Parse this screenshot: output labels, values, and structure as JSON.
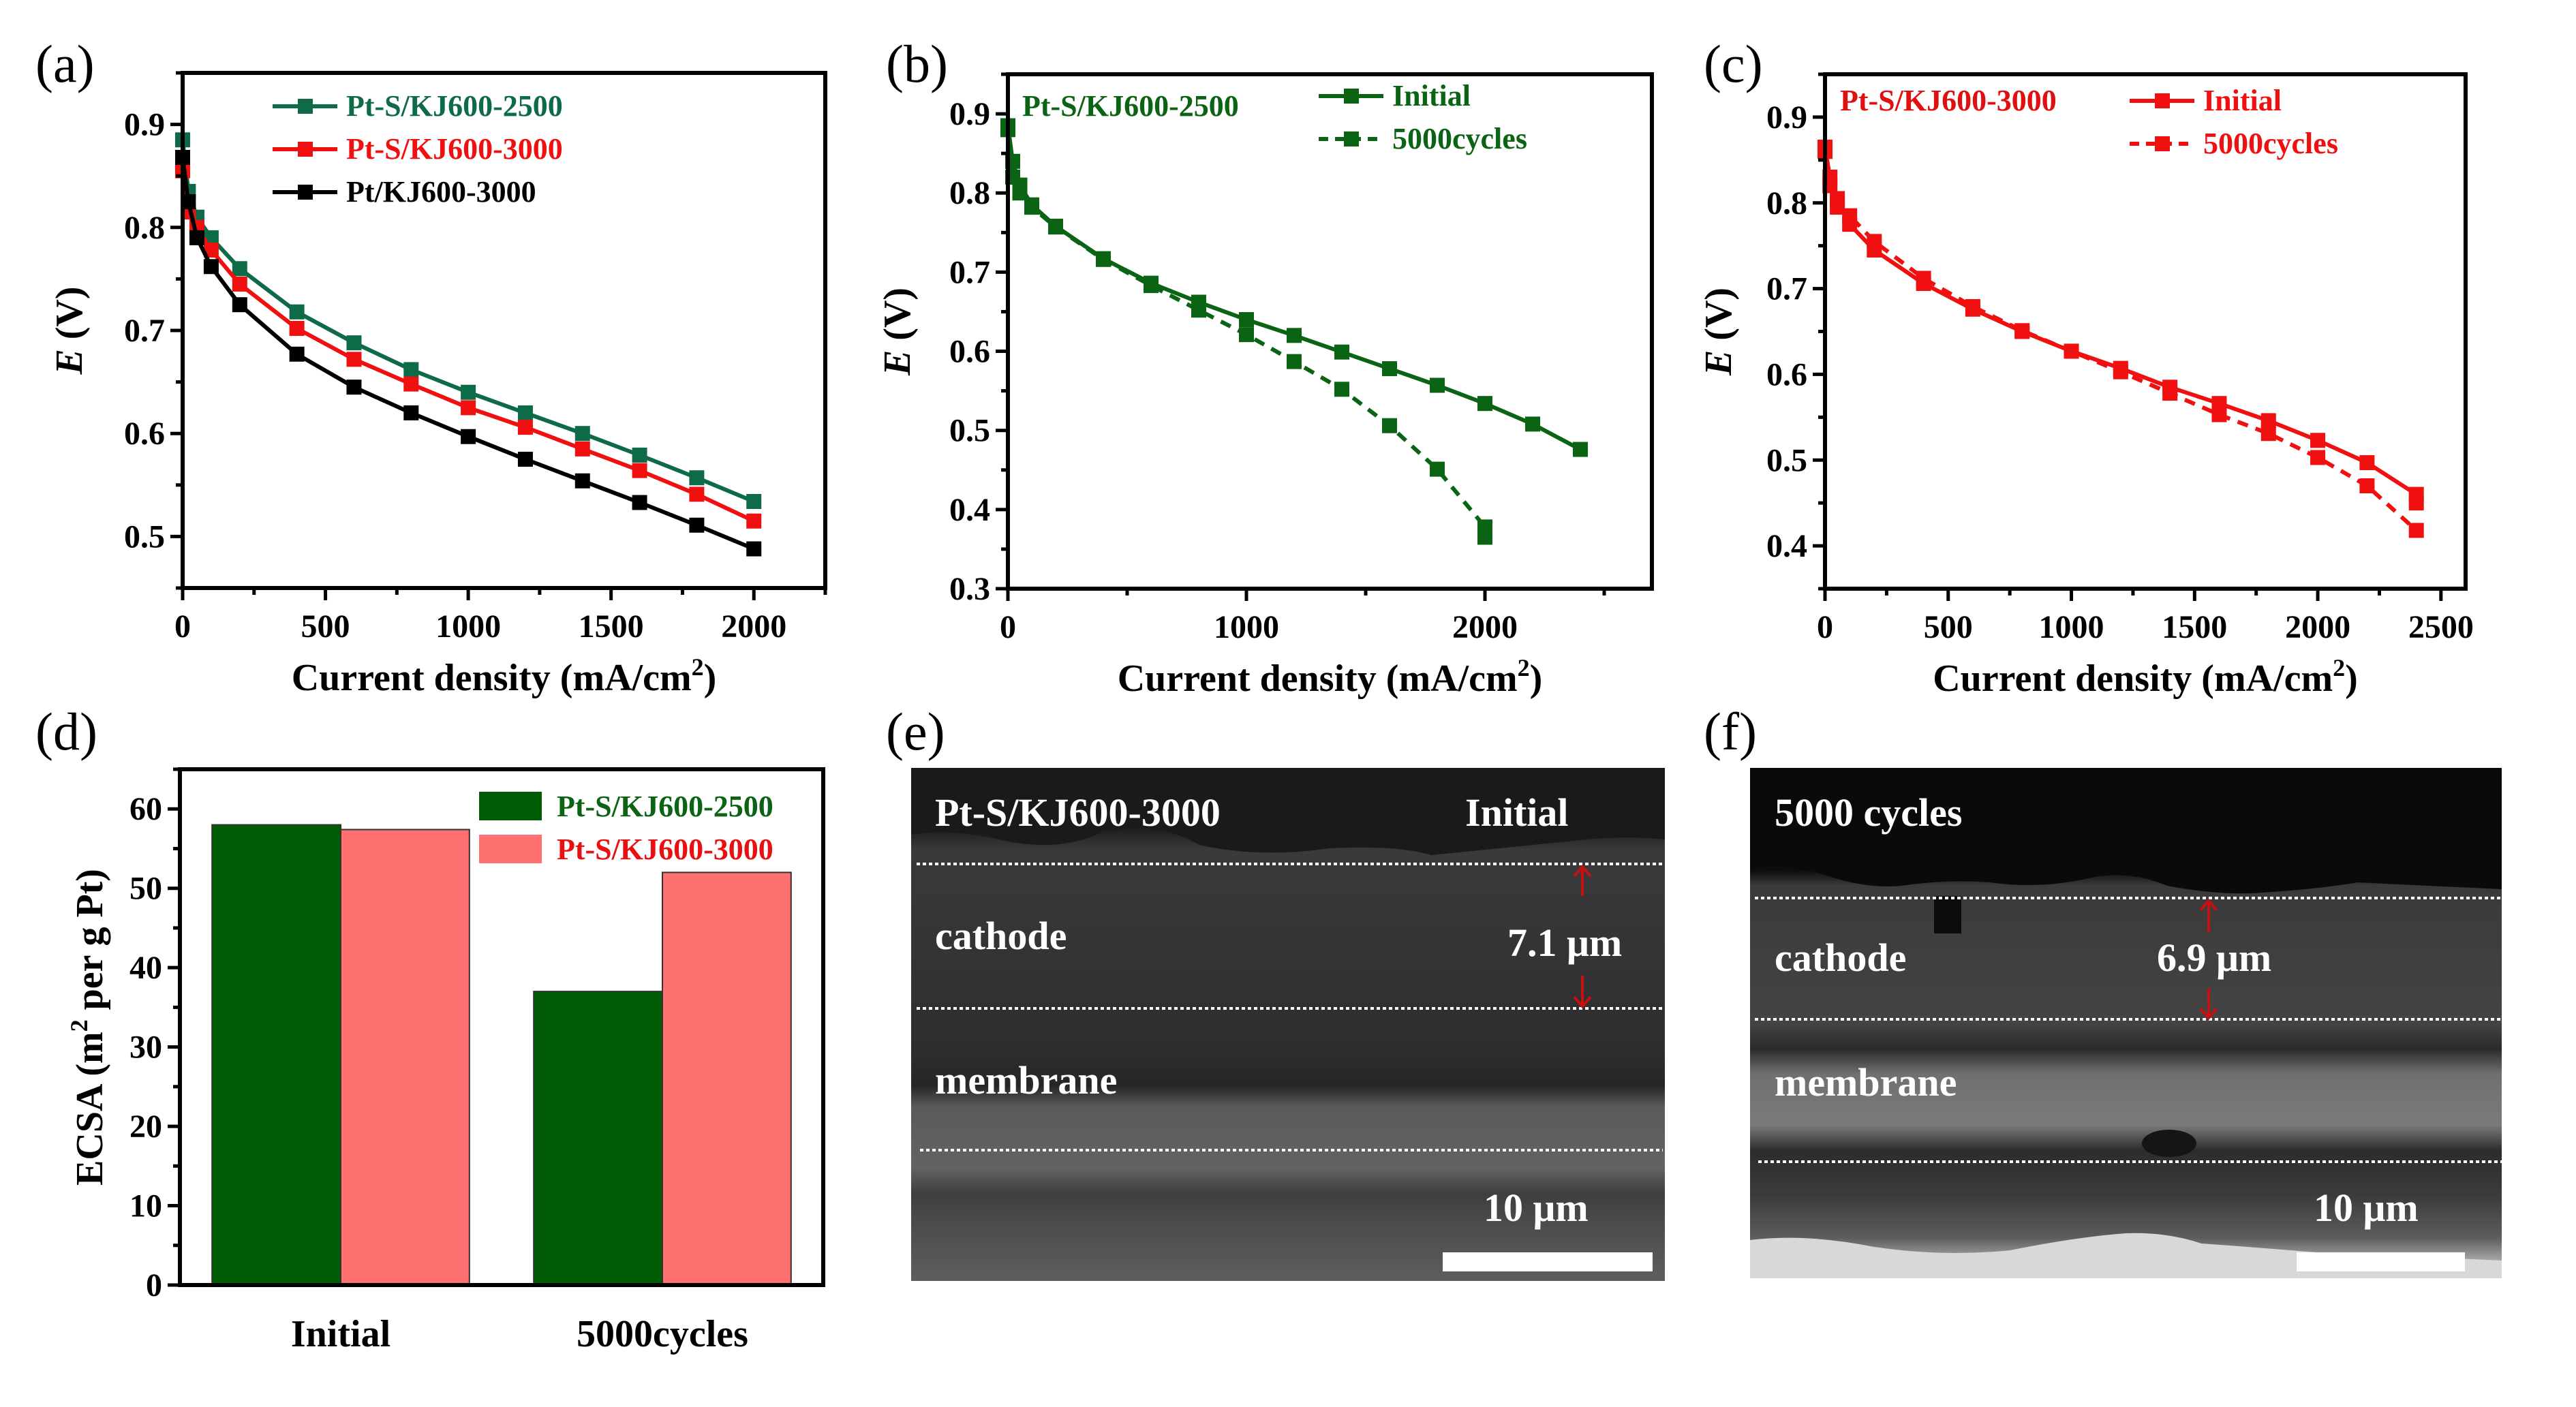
{
  "panel_labels": [
    "(a)",
    "(b)",
    "(c)",
    "(d)",
    "(e)",
    "(f)"
  ],
  "colors": {
    "teal_green": "#0E6B47",
    "dark_green": "#0A6414",
    "red": "#F01010",
    "black": "#000000",
    "bar_green": "#005C05",
    "bar_pink": "#FF7070"
  },
  "chart_data": [
    {
      "id": "a",
      "type": "line",
      "title": "",
      "xlabel": "Current density (mA/cm",
      "xlabel_sup": "2",
      "xlabel_end": ")",
      "ylabel_italic": "E",
      "ylabel_rest": " (V)",
      "xlim": [
        0,
        2250
      ],
      "ylim": [
        0.45,
        0.95
      ],
      "xticks": [
        0,
        500,
        1000,
        1500,
        2000
      ],
      "xtick_labels": [
        "0",
        "500",
        "1000",
        "1500",
        "2000"
      ],
      "yticks": [
        0.5,
        0.6,
        0.7,
        0.8,
        0.9
      ],
      "ytick_labels": [
        "0.5",
        "0.6",
        "0.7",
        "0.8",
        "0.9"
      ],
      "legend_position": "top-center",
      "grid": false,
      "series": [
        {
          "name": "Pt-S/KJ600-2500",
          "color": "#0E6B47",
          "dash": false,
          "x": [
            0,
            20,
            50,
            100,
            200,
            400,
            600,
            800,
            1000,
            1200,
            1400,
            1600,
            1800,
            2000
          ],
          "y": [
            0.885,
            0.835,
            0.81,
            0.79,
            0.76,
            0.718,
            0.688,
            0.662,
            0.64,
            0.62,
            0.6,
            0.579,
            0.557,
            0.534
          ]
        },
        {
          "name": "Pt-S/KJ600-3000",
          "color": "#F01010",
          "dash": false,
          "x": [
            0,
            20,
            50,
            100,
            200,
            400,
            600,
            800,
            1000,
            1200,
            1400,
            1600,
            1800,
            2000
          ],
          "y": [
            0.855,
            0.815,
            0.8,
            0.778,
            0.745,
            0.702,
            0.672,
            0.648,
            0.625,
            0.606,
            0.585,
            0.564,
            0.541,
            0.515
          ]
        },
        {
          "name": "Pt/KJ600-3000",
          "color": "#000000",
          "dash": false,
          "x": [
            0,
            20,
            50,
            100,
            200,
            400,
            600,
            800,
            1000,
            1200,
            1400,
            1600,
            1800,
            2000
          ],
          "y": [
            0.868,
            0.825,
            0.79,
            0.762,
            0.725,
            0.677,
            0.645,
            0.62,
            0.597,
            0.575,
            0.554,
            0.533,
            0.511,
            0.488
          ]
        }
      ]
    },
    {
      "id": "b",
      "type": "line",
      "annotation": "Pt-S/KJ600-2500",
      "xlabel": "Current density (mA/cm",
      "xlabel_sup": "2",
      "xlabel_end": ")",
      "ylabel_italic": "E",
      "ylabel_rest": " (V)",
      "xlim": [
        0,
        2700
      ],
      "ylim": [
        0.3,
        0.95
      ],
      "xticks": [
        0,
        1000,
        2000
      ],
      "xtick_labels": [
        "0",
        "1000",
        "2000"
      ],
      "yticks": [
        0.3,
        0.4,
        0.5,
        0.6,
        0.7,
        0.8,
        0.9
      ],
      "ytick_labels": [
        "0.3",
        "0.4",
        "0.5",
        "0.6",
        "0.7",
        "0.8",
        "0.9"
      ],
      "legend_position": "top-right",
      "grid": false,
      "series": [
        {
          "name": "Initial",
          "color": "#0A6414",
          "dash": false,
          "x": [
            0,
            20,
            50,
            100,
            200,
            400,
            600,
            800,
            1000,
            1200,
            1400,
            1600,
            1800,
            2000,
            2200,
            2400
          ],
          "y": [
            0.885,
            0.84,
            0.81,
            0.785,
            0.758,
            0.717,
            0.686,
            0.662,
            0.64,
            0.62,
            0.599,
            0.578,
            0.557,
            0.534,
            0.508,
            0.476
          ]
        },
        {
          "name": "5000cycles",
          "color": "#0A6414",
          "dash": true,
          "x": [
            0,
            20,
            50,
            100,
            200,
            400,
            600,
            800,
            1000,
            1200,
            1400,
            1600,
            1800,
            2000,
            2000
          ],
          "y": [
            0.88,
            0.82,
            0.8,
            0.782,
            0.757,
            0.716,
            0.683,
            0.652,
            0.621,
            0.587,
            0.552,
            0.506,
            0.451,
            0.378,
            0.365
          ]
        }
      ]
    },
    {
      "id": "c",
      "type": "line",
      "annotation": "Pt-S/KJ600-3000",
      "xlabel": "Current density (mA/cm",
      "xlabel_sup": "2",
      "xlabel_end": ")",
      "ylabel_italic": "E",
      "ylabel_rest": " (V)",
      "xlim": [
        0,
        2600
      ],
      "ylim": [
        0.35,
        0.95
      ],
      "xticks": [
        0,
        500,
        1000,
        1500,
        2000,
        2500
      ],
      "xtick_labels": [
        "0",
        "500",
        "1000",
        "1500",
        "2000",
        "2500"
      ],
      "yticks": [
        0.4,
        0.5,
        0.6,
        0.7,
        0.8,
        0.9
      ],
      "ytick_labels": [
        "0.4",
        "0.5",
        "0.6",
        "0.7",
        "0.8",
        "0.9"
      ],
      "legend_position": "top-right",
      "grid": false,
      "series": [
        {
          "name": "Initial",
          "color": "#F01010",
          "dash": false,
          "x": [
            0,
            20,
            50,
            100,
            200,
            400,
            600,
            800,
            1000,
            1200,
            1400,
            1600,
            1800,
            2000,
            2200,
            2400,
            2400
          ],
          "y": [
            0.865,
            0.83,
            0.805,
            0.775,
            0.745,
            0.706,
            0.676,
            0.65,
            0.627,
            0.607,
            0.585,
            0.566,
            0.546,
            0.523,
            0.497,
            0.46,
            0.45
          ]
        },
        {
          "name": "5000cycles",
          "color": "#F01010",
          "dash": true,
          "x": [
            0,
            20,
            50,
            100,
            200,
            400,
            600,
            800,
            1000,
            1200,
            1400,
            1600,
            1800,
            2000,
            2200,
            2400
          ],
          "y": [
            0.86,
            0.82,
            0.795,
            0.785,
            0.755,
            0.712,
            0.679,
            0.651,
            0.627,
            0.603,
            0.578,
            0.553,
            0.531,
            0.503,
            0.47,
            0.418
          ]
        }
      ]
    },
    {
      "id": "d",
      "type": "bar",
      "categories": [
        "Initial",
        "5000cycles"
      ],
      "ylabel_pre": "ECSA (m",
      "ylabel_sup": "2",
      "ylabel_post": " per g Pt)",
      "xlabel": "",
      "ylim": [
        0,
        65
      ],
      "yticks": [
        0,
        10,
        20,
        30,
        40,
        50,
        60
      ],
      "ytick_labels": [
        "0",
        "10",
        "20",
        "30",
        "40",
        "50",
        "60"
      ],
      "legend_position": "top-right",
      "grid": false,
      "series": [
        {
          "name": "Pt-S/KJ600-2500",
          "color": "#005C05",
          "legend_text_color": "#0A6414",
          "values": [
            58,
            37
          ]
        },
        {
          "name": "Pt-S/KJ600-3000",
          "color": "#FF7070",
          "legend_text_color": "#E81010",
          "values": [
            57.4,
            52
          ]
        }
      ]
    }
  ],
  "sem_images": [
    {
      "id": "e",
      "sample_label": "Pt-S/KJ600-3000",
      "state_label": "Initial",
      "cathode_label": "cathode",
      "membrane_label": "membrane",
      "thickness_label": "7.1 μm",
      "scale_bar_label": "10 μm"
    },
    {
      "id": "f",
      "state_label": "5000 cycles",
      "cathode_label": "cathode",
      "membrane_label": "membrane",
      "thickness_label": "6.9 μm",
      "scale_bar_label": "10 μm"
    }
  ]
}
